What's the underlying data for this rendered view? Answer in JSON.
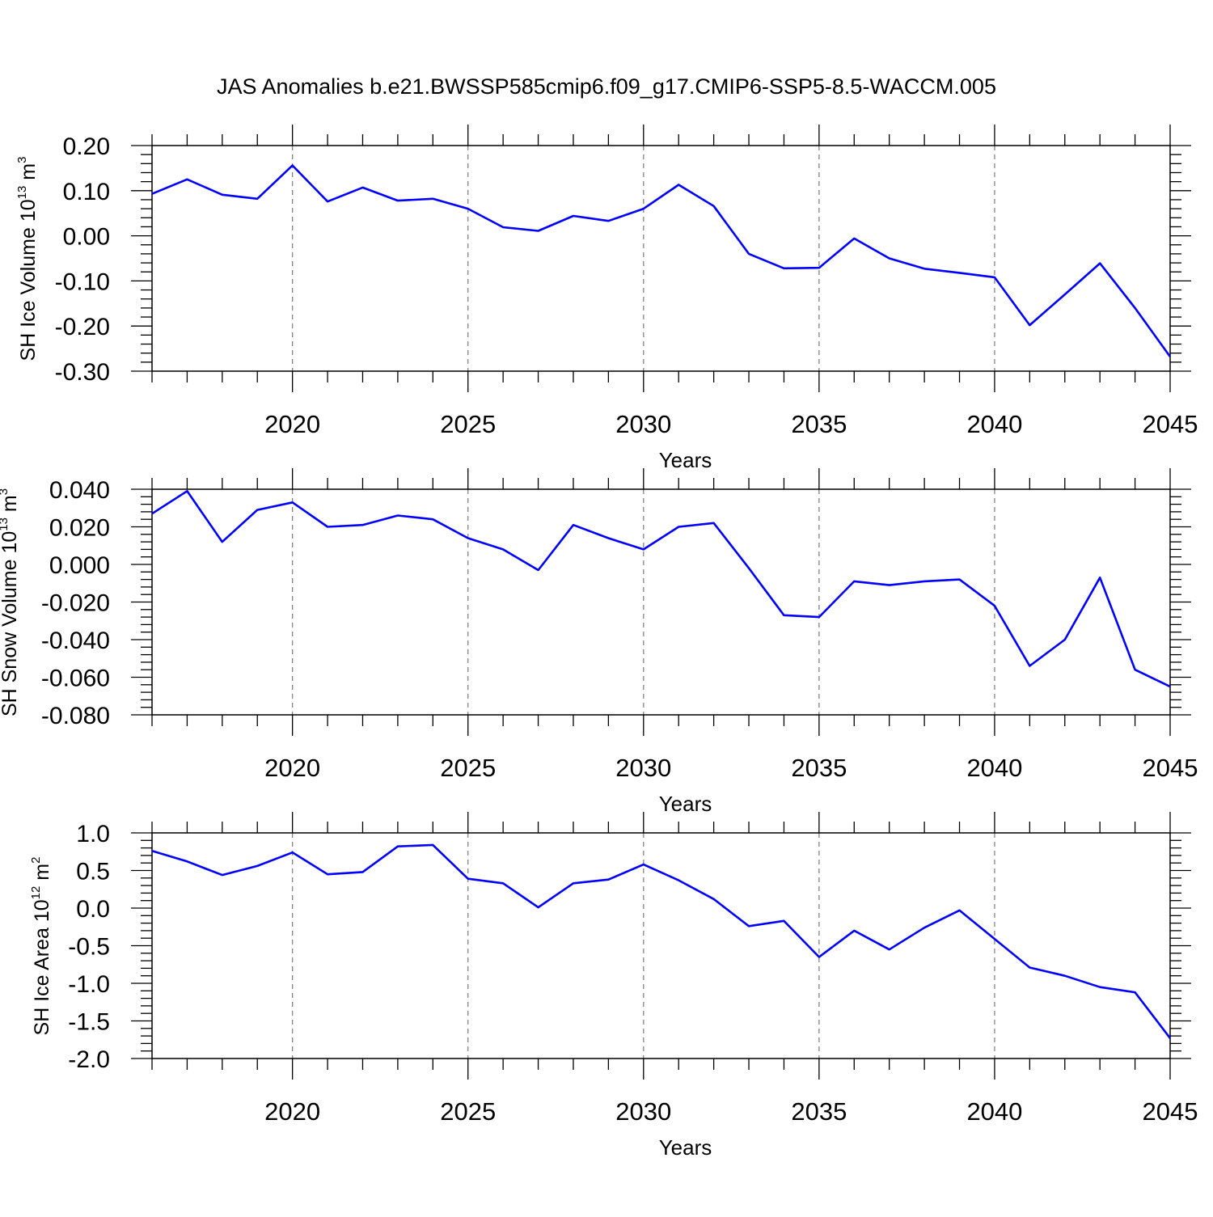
{
  "title": "JAS Anomalies b.e21.BWSSP585cmip6.f09_g17.CMIP6-SSP5-8.5-WACCM.005",
  "line_color": "#0000ff",
  "chart_data": [
    {
      "type": "line",
      "ylabel": {
        "text": "SH Ice Volume 10",
        "sup": "13",
        "unit": " m",
        "unit_sup": "3"
      },
      "xlabel": "Years",
      "xlim": [
        2016,
        2045
      ],
      "ylim": [
        -0.3,
        0.2
      ],
      "x_ticks": [
        2020,
        2025,
        2030,
        2035,
        2040,
        2045
      ],
      "x_tick_labels": [
        "2020",
        "2025",
        "2030",
        "2035",
        "2040",
        "2045"
      ],
      "y_ticks": [
        0.2,
        0.1,
        0.0,
        -0.1,
        -0.2,
        -0.3
      ],
      "y_tick_labels": [
        "0.20",
        "0.10",
        "0.00",
        "-0.10",
        "-0.20",
        "-0.30"
      ],
      "grid": "vertical dashed at major x ticks",
      "x": [
        2016,
        2017,
        2018,
        2019,
        2020,
        2021,
        2022,
        2023,
        2024,
        2025,
        2026,
        2027,
        2028,
        2029,
        2030,
        2031,
        2032,
        2033,
        2034,
        2035,
        2036,
        2037,
        2038,
        2039,
        2040,
        2041,
        2042,
        2043,
        2044,
        2045
      ],
      "series": [
        {
          "values": [
            0.093,
            0.125,
            0.091,
            0.082,
            0.156,
            0.076,
            0.107,
            0.078,
            0.082,
            0.06,
            0.019,
            0.011,
            0.044,
            0.033,
            0.06,
            0.113,
            0.066,
            -0.04,
            -0.072,
            -0.071,
            -0.006,
            -0.05,
            -0.073,
            -0.082,
            -0.092,
            -0.198,
            -0.13,
            -0.061,
            -0.16,
            -0.268
          ]
        }
      ]
    },
    {
      "type": "line",
      "ylabel": {
        "text": "SH Snow Volume 10",
        "sup": "13",
        "unit": " m",
        "unit_sup": "3"
      },
      "xlabel": "Years",
      "xlim": [
        2016,
        2045
      ],
      "ylim": [
        -0.08,
        0.04
      ],
      "x_ticks": [
        2020,
        2025,
        2030,
        2035,
        2040,
        2045
      ],
      "x_tick_labels": [
        "2020",
        "2025",
        "2030",
        "2035",
        "2040",
        "2045"
      ],
      "y_ticks": [
        0.04,
        0.02,
        0.0,
        -0.02,
        -0.04,
        -0.06,
        -0.08
      ],
      "y_tick_labels": [
        "0.040",
        "0.020",
        "0.000",
        "-0.020",
        "-0.040",
        "-0.060",
        "-0.080"
      ],
      "grid": "vertical dashed at major x ticks",
      "x": [
        2016,
        2017,
        2018,
        2019,
        2020,
        2021,
        2022,
        2023,
        2024,
        2025,
        2026,
        2027,
        2028,
        2029,
        2030,
        2031,
        2032,
        2033,
        2034,
        2035,
        2036,
        2037,
        2038,
        2039,
        2040,
        2041,
        2042,
        2043,
        2044,
        2045
      ],
      "series": [
        {
          "values": [
            0.027,
            0.039,
            0.012,
            0.029,
            0.033,
            0.02,
            0.021,
            0.026,
            0.024,
            0.014,
            0.008,
            -0.003,
            0.021,
            0.014,
            0.008,
            0.02,
            0.022,
            -0.002,
            -0.027,
            -0.028,
            -0.009,
            -0.011,
            -0.009,
            -0.008,
            -0.022,
            -0.054,
            -0.04,
            -0.007,
            -0.056,
            -0.065
          ]
        }
      ]
    },
    {
      "type": "line",
      "ylabel": {
        "text": "SH Ice Area 10",
        "sup": "12",
        "unit": " m",
        "unit_sup": "2"
      },
      "xlabel": "Years",
      "xlim": [
        2016,
        2045
      ],
      "ylim": [
        -2.0,
        1.0
      ],
      "x_ticks": [
        2020,
        2025,
        2030,
        2035,
        2040,
        2045
      ],
      "x_tick_labels": [
        "2020",
        "2025",
        "2030",
        "2035",
        "2040",
        "2045"
      ],
      "y_ticks": [
        1.0,
        0.5,
        0.0,
        -0.5,
        -1.0,
        -1.5,
        -2.0
      ],
      "y_tick_labels": [
        "1.0",
        "0.5",
        "0.0",
        "-0.5",
        "-1.0",
        "-1.5",
        "-2.0"
      ],
      "grid": "vertical dashed at major x ticks",
      "x": [
        2016,
        2017,
        2018,
        2019,
        2020,
        2021,
        2022,
        2023,
        2024,
        2025,
        2026,
        2027,
        2028,
        2029,
        2030,
        2031,
        2032,
        2033,
        2034,
        2035,
        2036,
        2037,
        2038,
        2039,
        2040,
        2041,
        2042,
        2043,
        2044,
        2045
      ],
      "series": [
        {
          "values": [
            0.76,
            0.62,
            0.44,
            0.56,
            0.74,
            0.45,
            0.48,
            0.82,
            0.84,
            0.39,
            0.33,
            0.01,
            0.33,
            0.38,
            0.58,
            0.37,
            0.12,
            -0.24,
            -0.17,
            -0.65,
            -0.3,
            -0.55,
            -0.26,
            -0.03,
            -0.41,
            -0.79,
            -0.9,
            -1.05,
            -1.12,
            -1.73
          ]
        }
      ]
    }
  ]
}
